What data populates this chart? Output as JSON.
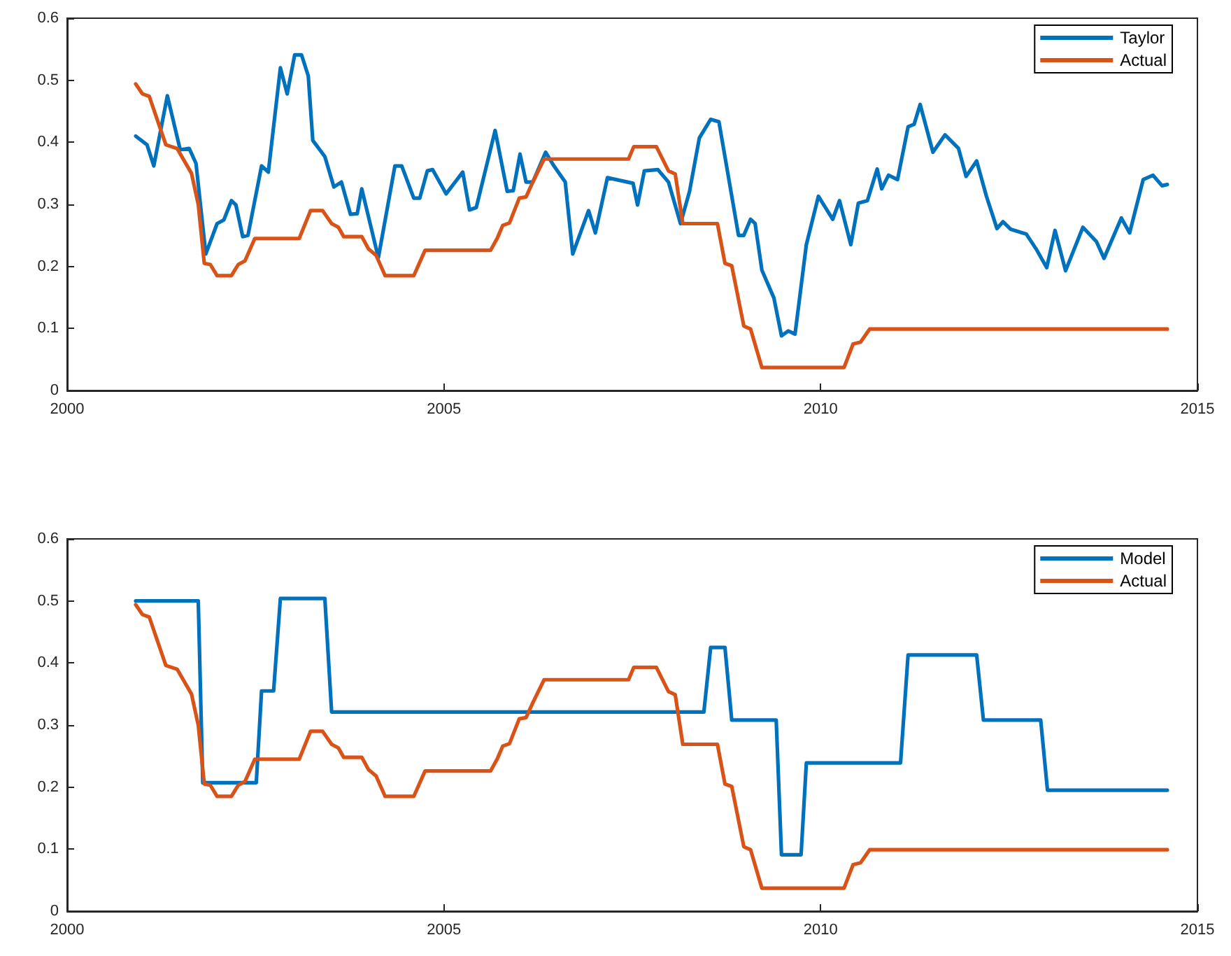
{
  "chart_data": [
    {
      "type": "line",
      "xlim": [
        2000,
        2015
      ],
      "xticks": [
        2000,
        2005,
        2010,
        2015
      ],
      "ylim": [
        0,
        0.6
      ],
      "yticks": [
        0,
        0.1,
        0.2,
        0.3,
        0.4,
        0.5,
        0.6
      ],
      "grid": false,
      "legend": "top right",
      "marker": "none",
      "line_style": "solid",
      "series": [
        {
          "name": "Taylor",
          "color": "#0072bd",
          "x": [
            2000.91,
            2001.06,
            2001.15,
            2001.25,
            2001.33,
            2001.5,
            2001.62,
            2001.71,
            2001.84,
            2001.99,
            2002.08,
            2002.18,
            2002.24,
            2002.33,
            2002.4,
            2002.58,
            2002.67,
            2002.83,
            2002.92,
            2003.02,
            2003.11,
            2003.2,
            2003.26,
            2003.42,
            2003.54,
            2003.64,
            2003.76,
            2003.85,
            2003.91,
            2004.13,
            2004.35,
            2004.44,
            2004.6,
            2004.68,
            2004.78,
            2004.85,
            2005.03,
            2005.25,
            2005.34,
            2005.43,
            2005.68,
            2005.84,
            2005.92,
            2006.01,
            2006.09,
            2006.18,
            2006.35,
            2006.46,
            2006.61,
            2006.71,
            2006.92,
            2007.01,
            2007.17,
            2007.51,
            2007.57,
            2007.66,
            2007.84,
            2007.98,
            2008.14,
            2008.26,
            2008.39,
            2008.54,
            2008.65,
            2008.91,
            2008.98,
            2009.07,
            2009.13,
            2009.22,
            2009.38,
            2009.48,
            2009.57,
            2009.66,
            2009.81,
            2009.97,
            2010.16,
            2010.25,
            2010.4,
            2010.5,
            2010.62,
            2010.75,
            2010.81,
            2010.9,
            2011.02,
            2011.16,
            2011.24,
            2011.32,
            2011.49,
            2011.65,
            2011.83,
            2011.93,
            2012.07,
            2012.2,
            2012.34,
            2012.42,
            2012.52,
            2012.73,
            2012.86,
            2013.0,
            2013.11,
            2013.25,
            2013.48,
            2013.66,
            2013.76,
            2013.99,
            2014.1,
            2014.28,
            2014.41,
            2014.53,
            2014.6
          ],
          "values": [
            0.41,
            0.396,
            0.362,
            0.425,
            0.475,
            0.388,
            0.39,
            0.366,
            0.22,
            0.269,
            0.275,
            0.306,
            0.299,
            0.248,
            0.25,
            0.362,
            0.352,
            0.52,
            0.478,
            0.541,
            0.541,
            0.507,
            0.403,
            0.377,
            0.328,
            0.336,
            0.284,
            0.285,
            0.325,
            0.214,
            0.362,
            0.362,
            0.31,
            0.31,
            0.354,
            0.356,
            0.317,
            0.352,
            0.291,
            0.295,
            0.419,
            0.321,
            0.322,
            0.381,
            0.336,
            0.336,
            0.384,
            0.362,
            0.336,
            0.22,
            0.29,
            0.254,
            0.343,
            0.334,
            0.299,
            0.354,
            0.356,
            0.336,
            0.269,
            0.321,
            0.407,
            0.437,
            0.433,
            0.25,
            0.25,
            0.276,
            0.269,
            0.194,
            0.149,
            0.088,
            0.096,
            0.091,
            0.235,
            0.313,
            0.276,
            0.306,
            0.235,
            0.302,
            0.306,
            0.357,
            0.325,
            0.347,
            0.34,
            0.425,
            0.429,
            0.461,
            0.384,
            0.412,
            0.39,
            0.345,
            0.37,
            0.313,
            0.261,
            0.272,
            0.26,
            0.252,
            0.228,
            0.198,
            0.258,
            0.193,
            0.263,
            0.24,
            0.213,
            0.278,
            0.254,
            0.34,
            0.347,
            0.33,
            0.332
          ]
        },
        {
          "name": "Actual",
          "color": "#d95319",
          "x": [
            2000.91,
            2001.0,
            2001.09,
            2001.31,
            2001.46,
            2001.65,
            2001.74,
            2001.82,
            2001.9,
            2001.99,
            2002.18,
            2002.27,
            2002.36,
            2002.49,
            2003.08,
            2003.23,
            2003.39,
            2003.51,
            2003.6,
            2003.67,
            2003.91,
            2004.0,
            2004.1,
            2004.22,
            2004.6,
            2004.75,
            2005.62,
            2005.71,
            2005.78,
            2005.87,
            2006.0,
            2006.09,
            2006.18,
            2006.33,
            2007.45,
            2007.52,
            2007.82,
            2007.98,
            2008.07,
            2008.17,
            2008.63,
            2008.73,
            2008.82,
            2008.98,
            2009.07,
            2009.22,
            2010.31,
            2010.43,
            2010.53,
            2010.65,
            2014.6
          ],
          "values": [
            0.494,
            0.478,
            0.474,
            0.396,
            0.39,
            0.35,
            0.3,
            0.205,
            0.203,
            0.185,
            0.185,
            0.203,
            0.209,
            0.245,
            0.245,
            0.29,
            0.29,
            0.269,
            0.263,
            0.248,
            0.248,
            0.228,
            0.218,
            0.185,
            0.185,
            0.226,
            0.226,
            0.246,
            0.266,
            0.27,
            0.31,
            0.312,
            0.336,
            0.373,
            0.373,
            0.393,
            0.393,
            0.354,
            0.349,
            0.269,
            0.269,
            0.205,
            0.201,
            0.104,
            0.099,
            0.037,
            0.037,
            0.075,
            0.078,
            0.099,
            0.099
          ]
        }
      ]
    },
    {
      "type": "line",
      "xlim": [
        2000,
        2015
      ],
      "xticks": [
        2000,
        2005,
        2010,
        2015
      ],
      "ylim": [
        0,
        0.6
      ],
      "yticks": [
        0,
        0.1,
        0.2,
        0.3,
        0.4,
        0.5,
        0.6
      ],
      "grid": false,
      "legend": "top right",
      "marker": "none",
      "line_style": "solid",
      "series": [
        {
          "name": "Model",
          "color": "#0072bd",
          "x": [
            2000.91,
            2001.74,
            2001.8,
            2002.51,
            2002.58,
            2002.74,
            2002.83,
            2003.42,
            2003.51,
            2008.45,
            2008.54,
            2008.73,
            2008.82,
            2009.41,
            2009.48,
            2009.74,
            2009.81,
            2011.06,
            2011.16,
            2012.07,
            2012.16,
            2012.92,
            2013.01,
            2014.6
          ],
          "values": [
            0.5,
            0.5,
            0.207,
            0.207,
            0.355,
            0.355,
            0.504,
            0.504,
            0.321,
            0.321,
            0.425,
            0.425,
            0.308,
            0.308,
            0.091,
            0.091,
            0.239,
            0.239,
            0.413,
            0.413,
            0.308,
            0.308,
            0.195,
            0.195
          ]
        },
        {
          "name": "Actual",
          "color": "#d95319",
          "x": [
            2000.91,
            2001.0,
            2001.09,
            2001.31,
            2001.46,
            2001.65,
            2001.74,
            2001.82,
            2001.9,
            2001.99,
            2002.18,
            2002.27,
            2002.36,
            2002.49,
            2003.08,
            2003.23,
            2003.39,
            2003.51,
            2003.6,
            2003.67,
            2003.91,
            2004.0,
            2004.1,
            2004.22,
            2004.6,
            2004.75,
            2005.62,
            2005.71,
            2005.78,
            2005.87,
            2006.0,
            2006.09,
            2006.18,
            2006.33,
            2007.45,
            2007.52,
            2007.82,
            2007.98,
            2008.07,
            2008.17,
            2008.63,
            2008.73,
            2008.82,
            2008.98,
            2009.07,
            2009.22,
            2010.31,
            2010.43,
            2010.53,
            2010.65,
            2014.6
          ],
          "values": [
            0.494,
            0.478,
            0.474,
            0.396,
            0.39,
            0.35,
            0.3,
            0.205,
            0.203,
            0.185,
            0.185,
            0.203,
            0.209,
            0.245,
            0.245,
            0.29,
            0.29,
            0.269,
            0.263,
            0.248,
            0.248,
            0.228,
            0.218,
            0.185,
            0.185,
            0.226,
            0.226,
            0.246,
            0.266,
            0.27,
            0.31,
            0.312,
            0.336,
            0.373,
            0.373,
            0.393,
            0.393,
            0.354,
            0.349,
            0.269,
            0.269,
            0.205,
            0.201,
            0.104,
            0.099,
            0.037,
            0.037,
            0.075,
            0.078,
            0.099,
            0.099
          ]
        }
      ]
    }
  ]
}
